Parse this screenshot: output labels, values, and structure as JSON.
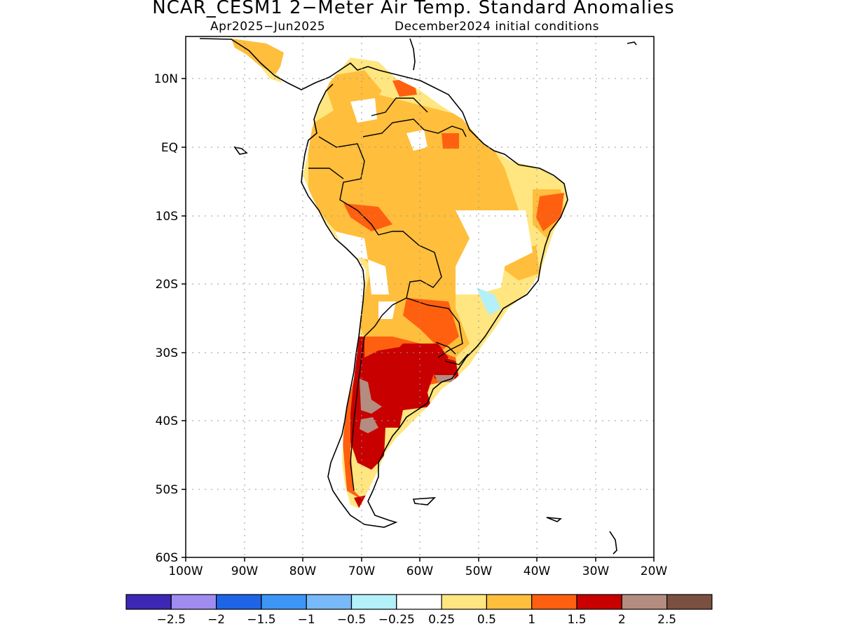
{
  "header": {
    "title": "NCAR_CESM1 2−Meter Air Temp. Standard Anomalies",
    "period": "Apr2025−Jun2025",
    "init": "December2024 initial conditions"
  },
  "map": {
    "lat_labels": [
      "10N",
      "EQ",
      "10S",
      "20S",
      "30S",
      "40S",
      "50S",
      "60S"
    ],
    "lon_labels": [
      "100W",
      "90W",
      "80W",
      "70W",
      "60W",
      "50W",
      "40W",
      "30W",
      "20W"
    ],
    "colors": {
      "white": "#ffffff",
      "light_yellow": "#ffe680",
      "orange_light": "#ffbe3c",
      "orange": "#ff6010",
      "red": "#c80000",
      "taupe": "#b48c80",
      "light_cyan": "#b4f0fa"
    }
  },
  "legend": {
    "colors": [
      "#3c28b4",
      "#a08cf0",
      "#1e64e6",
      "#3c96f5",
      "#78b9fa",
      "#b4f0fa",
      "#ffffff",
      "#ffe680",
      "#ffbe3c",
      "#ff6010",
      "#c80000",
      "#b48c80",
      "#7a5040"
    ],
    "labels": [
      "−2.5",
      "−2",
      "−1.5",
      "−1",
      "−0.5",
      "−0.25",
      "0.25",
      "0.5",
      "1",
      "1.5",
      "2",
      "2.5"
    ]
  }
}
